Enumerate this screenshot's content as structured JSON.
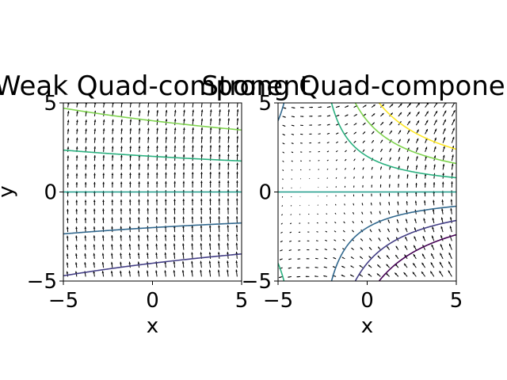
{
  "chart_data": [
    {
      "type": "contour_quiver",
      "title": "Weak Quad-component",
      "xlabel": "x",
      "ylabel": "y",
      "xlim": [
        -5,
        5
      ],
      "ylim": [
        -5,
        5
      ],
      "xticks": [
        "−5",
        "0",
        "5"
      ],
      "yticks": [
        "−5",
        "0",
        "5"
      ],
      "strength": 0.03,
      "contour_levels": [
        -6,
        -4,
        -2,
        0,
        2,
        4,
        6
      ]
    },
    {
      "type": "contour_quiver",
      "title": "Strong Quad-component",
      "xlabel": "x",
      "ylabel": "",
      "xlim": [
        -5,
        5
      ],
      "ylim": [
        -5,
        5
      ],
      "xticks": [
        "−5",
        "0",
        "5"
      ],
      "yticks": [
        "−5",
        "0",
        "5"
      ],
      "strength": 0.3,
      "contour_levels": [
        -6,
        -4,
        -2,
        0,
        2,
        4,
        6
      ]
    }
  ],
  "colormap": [
    "#440154",
    "#433e85",
    "#30678d",
    "#25858e",
    "#1e9b8a",
    "#2ab07f",
    "#7fd34e",
    "#fde725"
  ]
}
